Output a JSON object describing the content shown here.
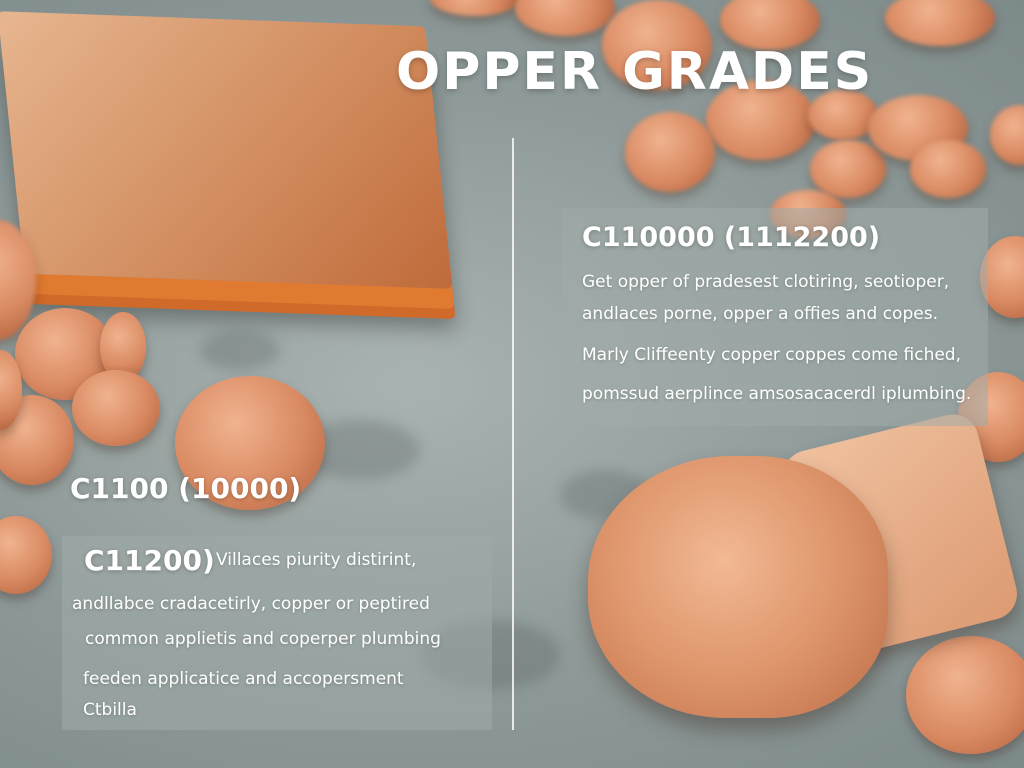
{
  "title": "OPPER GRADES",
  "right_panel": {
    "heading": "C110000 (1112200)",
    "lines": [
      "Get opper of pradesest clotiring, seotioper,",
      "andlaces porne, opper a offies and copes.",
      "Marly Cliffeenty copper coppes come fiched,",
      "pomssud aerplince amsosacacerdl iplumbing."
    ]
  },
  "left_section": {
    "heading": "C1100 (10000)",
    "subheading": "C11200)",
    "lines": [
      "Villaces piurity distirint,",
      "andllabce cradacetirly, copper or peptired",
      "common applietis and coperper plumbing",
      "feeden applicatice and accopersment",
      "Ctbilla"
    ]
  },
  "colors": {
    "copper": "#d98a62",
    "background": "#9aa5a4",
    "text": "#ffffff"
  }
}
